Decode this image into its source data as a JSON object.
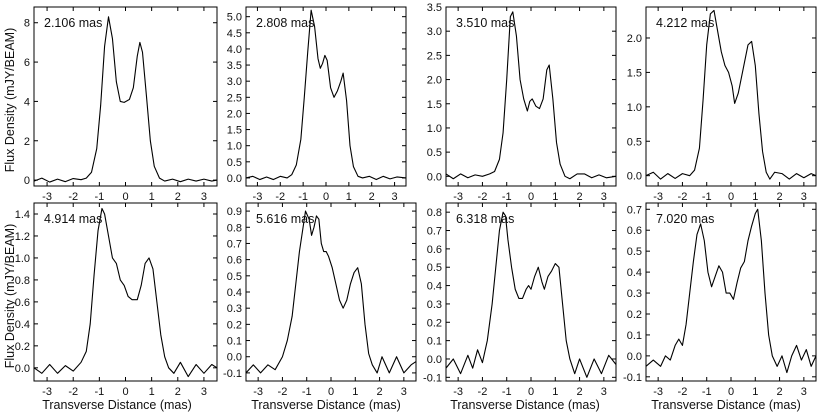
{
  "figure": {
    "ylabel": "Flux Density (mJY/BEAM)",
    "xlabel": "Transverse Distance (mas)"
  },
  "chart_data": [
    {
      "type": "line",
      "label": "2.106 mas",
      "xlim": [
        -3.5,
        3.5
      ],
      "ylim": [
        -0.3,
        8.8
      ],
      "xticks": [
        -3,
        -2,
        -1,
        0,
        1,
        2,
        3
      ],
      "yticks": [
        0,
        2,
        4,
        6,
        8
      ],
      "points": [
        [
          -3.5,
          -0.05
        ],
        [
          -3.2,
          0.1
        ],
        [
          -2.9,
          -0.1
        ],
        [
          -2.6,
          0.05
        ],
        [
          -2.3,
          -0.08
        ],
        [
          -2.0,
          0.08
        ],
        [
          -1.7,
          0.02
        ],
        [
          -1.5,
          0.1
        ],
        [
          -1.3,
          0.4
        ],
        [
          -1.1,
          1.6
        ],
        [
          -0.95,
          3.8
        ],
        [
          -0.8,
          6.8
        ],
        [
          -0.65,
          8.3
        ],
        [
          -0.5,
          7.2
        ],
        [
          -0.35,
          5.0
        ],
        [
          -0.2,
          4.0
        ],
        [
          -0.05,
          3.95
        ],
        [
          0.15,
          4.1
        ],
        [
          0.3,
          4.7
        ],
        [
          0.45,
          6.3
        ],
        [
          0.55,
          7.0
        ],
        [
          0.65,
          6.5
        ],
        [
          0.8,
          4.3
        ],
        [
          0.95,
          2.0
        ],
        [
          1.1,
          0.7
        ],
        [
          1.3,
          0.1
        ],
        [
          1.5,
          -0.05
        ],
        [
          1.8,
          0.05
        ],
        [
          2.1,
          -0.08
        ],
        [
          2.4,
          0.05
        ],
        [
          2.7,
          -0.05
        ],
        [
          3.0,
          0.05
        ],
        [
          3.3,
          -0.05
        ],
        [
          3.5,
          0.0
        ]
      ]
    },
    {
      "type": "line",
      "label": "2.808 mas",
      "xlim": [
        -3.5,
        3.5
      ],
      "ylim": [
        -0.25,
        5.3
      ],
      "xticks": [
        -3,
        -2,
        -1,
        0,
        1,
        2,
        3
      ],
      "yticks": [
        0.0,
        0.5,
        1.0,
        1.5,
        2.0,
        2.5,
        3.0,
        3.5,
        4.0,
        4.5,
        5.0
      ],
      "points": [
        [
          -3.5,
          0.0
        ],
        [
          -3.2,
          0.05
        ],
        [
          -2.9,
          -0.05
        ],
        [
          -2.6,
          0.03
        ],
        [
          -2.3,
          -0.05
        ],
        [
          -2.0,
          0.05
        ],
        [
          -1.7,
          0.0
        ],
        [
          -1.5,
          0.1
        ],
        [
          -1.3,
          0.4
        ],
        [
          -1.1,
          1.2
        ],
        [
          -0.95,
          2.5
        ],
        [
          -0.8,
          3.9
        ],
        [
          -0.65,
          5.2
        ],
        [
          -0.5,
          4.7
        ],
        [
          -0.35,
          3.7
        ],
        [
          -0.25,
          3.4
        ],
        [
          -0.15,
          3.55
        ],
        [
          -0.05,
          3.8
        ],
        [
          0.05,
          3.65
        ],
        [
          0.2,
          2.8
        ],
        [
          0.35,
          2.5
        ],
        [
          0.5,
          2.7
        ],
        [
          0.65,
          3.0
        ],
        [
          0.75,
          3.25
        ],
        [
          0.9,
          2.4
        ],
        [
          1.05,
          1.0
        ],
        [
          1.2,
          0.35
        ],
        [
          1.4,
          0.05
        ],
        [
          1.6,
          0.0
        ],
        [
          1.9,
          0.05
        ],
        [
          2.2,
          -0.05
        ],
        [
          2.5,
          0.05
        ],
        [
          2.8,
          -0.03
        ],
        [
          3.1,
          0.03
        ],
        [
          3.5,
          0.0
        ]
      ]
    },
    {
      "type": "line",
      "label": "3.510 mas",
      "xlim": [
        -3.5,
        3.5
      ],
      "ylim": [
        -0.2,
        3.5
      ],
      "xticks": [
        -3,
        -2,
        -1,
        0,
        1,
        2,
        3
      ],
      "yticks": [
        0.0,
        0.5,
        1.0,
        1.5,
        2.0,
        2.5,
        3.0,
        3.5
      ],
      "points": [
        [
          -3.5,
          0.05
        ],
        [
          -3.2,
          -0.05
        ],
        [
          -2.9,
          0.05
        ],
        [
          -2.6,
          -0.03
        ],
        [
          -2.3,
          0.03
        ],
        [
          -2.0,
          0.0
        ],
        [
          -1.7,
          0.05
        ],
        [
          -1.5,
          0.1
        ],
        [
          -1.3,
          0.35
        ],
        [
          -1.15,
          0.9
        ],
        [
          -1.0,
          2.0
        ],
        [
          -0.85,
          3.3
        ],
        [
          -0.75,
          3.4
        ],
        [
          -0.6,
          2.9
        ],
        [
          -0.45,
          2.0
        ],
        [
          -0.3,
          1.6
        ],
        [
          -0.15,
          1.35
        ],
        [
          -0.05,
          1.55
        ],
        [
          0.05,
          1.6
        ],
        [
          0.2,
          1.45
        ],
        [
          0.35,
          1.4
        ],
        [
          0.5,
          1.6
        ],
        [
          0.65,
          2.2
        ],
        [
          0.75,
          2.3
        ],
        [
          0.9,
          1.6
        ],
        [
          1.05,
          0.7
        ],
        [
          1.2,
          0.25
        ],
        [
          1.4,
          0.0
        ],
        [
          1.6,
          -0.05
        ],
        [
          1.9,
          0.05
        ],
        [
          2.2,
          0.05
        ],
        [
          2.5,
          -0.03
        ],
        [
          2.8,
          0.03
        ],
        [
          3.1,
          -0.03
        ],
        [
          3.5,
          0.0
        ]
      ]
    },
    {
      "type": "line",
      "label": "4.212 mas",
      "xlim": [
        -3.5,
        3.5
      ],
      "ylim": [
        -0.15,
        2.45
      ],
      "xticks": [
        -3,
        -2,
        -1,
        0,
        1,
        2,
        3
      ],
      "yticks": [
        0.0,
        0.5,
        1.0,
        1.5,
        2.0
      ],
      "points": [
        [
          -3.5,
          0.0
        ],
        [
          -3.2,
          0.05
        ],
        [
          -2.9,
          -0.05
        ],
        [
          -2.6,
          0.03
        ],
        [
          -2.3,
          -0.04
        ],
        [
          -2.0,
          0.03
        ],
        [
          -1.7,
          0.0
        ],
        [
          -1.5,
          0.08
        ],
        [
          -1.3,
          0.4
        ],
        [
          -1.15,
          1.1
        ],
        [
          -1.0,
          1.9
        ],
        [
          -0.85,
          2.35
        ],
        [
          -0.7,
          2.4
        ],
        [
          -0.55,
          2.1
        ],
        [
          -0.4,
          1.8
        ],
        [
          -0.25,
          1.6
        ],
        [
          -0.1,
          1.5
        ],
        [
          0.05,
          1.3
        ],
        [
          0.15,
          1.05
        ],
        [
          0.3,
          1.2
        ],
        [
          0.5,
          1.55
        ],
        [
          0.7,
          1.9
        ],
        [
          0.85,
          1.95
        ],
        [
          1.0,
          1.6
        ],
        [
          1.15,
          0.9
        ],
        [
          1.3,
          0.35
        ],
        [
          1.45,
          0.05
        ],
        [
          1.6,
          -0.05
        ],
        [
          1.8,
          0.05
        ],
        [
          2.1,
          0.03
        ],
        [
          2.4,
          -0.05
        ],
        [
          2.7,
          0.03
        ],
        [
          3.0,
          -0.03
        ],
        [
          3.3,
          0.03
        ],
        [
          3.5,
          0.0
        ]
      ]
    },
    {
      "type": "line",
      "label": "4.914 mas",
      "xlim": [
        -3.5,
        3.5
      ],
      "ylim": [
        -0.12,
        1.5
      ],
      "xticks": [
        -3,
        -2,
        -1,
        0,
        1,
        2,
        3
      ],
      "yticks": [
        0.0,
        0.2,
        0.4,
        0.6,
        0.8,
        1.0,
        1.2,
        1.4
      ],
      "points": [
        [
          -3.5,
          0.0
        ],
        [
          -3.2,
          -0.05
        ],
        [
          -2.9,
          0.03
        ],
        [
          -2.6,
          -0.05
        ],
        [
          -2.3,
          0.02
        ],
        [
          -2.0,
          -0.03
        ],
        [
          -1.7,
          0.05
        ],
        [
          -1.5,
          0.15
        ],
        [
          -1.35,
          0.4
        ],
        [
          -1.2,
          0.85
        ],
        [
          -1.05,
          1.25
        ],
        [
          -0.9,
          1.45
        ],
        [
          -0.8,
          1.4
        ],
        [
          -0.65,
          1.2
        ],
        [
          -0.5,
          1.0
        ],
        [
          -0.35,
          0.95
        ],
        [
          -0.2,
          0.8
        ],
        [
          -0.05,
          0.75
        ],
        [
          0.1,
          0.65
        ],
        [
          0.25,
          0.62
        ],
        [
          0.45,
          0.62
        ],
        [
          0.6,
          0.75
        ],
        [
          0.75,
          0.95
        ],
        [
          0.9,
          1.0
        ],
        [
          1.05,
          0.9
        ],
        [
          1.2,
          0.6
        ],
        [
          1.35,
          0.3
        ],
        [
          1.5,
          0.1
        ],
        [
          1.65,
          0.0
        ],
        [
          1.85,
          -0.05
        ],
        [
          2.1,
          0.05
        ],
        [
          2.4,
          -0.08
        ],
        [
          2.7,
          0.03
        ],
        [
          3.0,
          -0.05
        ],
        [
          3.3,
          0.03
        ],
        [
          3.5,
          0.0
        ]
      ]
    },
    {
      "type": "line",
      "label": "5.616 mas",
      "xlim": [
        -3.5,
        3.5
      ],
      "ylim": [
        -0.15,
        0.95
      ],
      "xticks": [
        -3,
        -2,
        -1,
        0,
        1,
        2,
        3
      ],
      "yticks": [
        -0.1,
        0.0,
        0.1,
        0.2,
        0.3,
        0.4,
        0.5,
        0.6,
        0.7,
        0.8,
        0.9
      ],
      "points": [
        [
          -3.5,
          -0.1
        ],
        [
          -3.2,
          -0.05
        ],
        [
          -2.9,
          -0.1
        ],
        [
          -2.6,
          -0.05
        ],
        [
          -2.3,
          -0.08
        ],
        [
          -2.0,
          0.0
        ],
        [
          -1.8,
          0.1
        ],
        [
          -1.6,
          0.25
        ],
        [
          -1.45,
          0.45
        ],
        [
          -1.3,
          0.65
        ],
        [
          -1.15,
          0.8
        ],
        [
          -1.05,
          0.9
        ],
        [
          -0.9,
          0.85
        ],
        [
          -0.8,
          0.75
        ],
        [
          -0.7,
          0.8
        ],
        [
          -0.6,
          0.87
        ],
        [
          -0.5,
          0.85
        ],
        [
          -0.4,
          0.7
        ],
        [
          -0.3,
          0.65
        ],
        [
          -0.2,
          0.65
        ],
        [
          -0.1,
          0.62
        ],
        [
          0.05,
          0.55
        ],
        [
          0.2,
          0.45
        ],
        [
          0.35,
          0.35
        ],
        [
          0.5,
          0.3
        ],
        [
          0.65,
          0.35
        ],
        [
          0.8,
          0.45
        ],
        [
          0.95,
          0.52
        ],
        [
          1.1,
          0.55
        ],
        [
          1.25,
          0.45
        ],
        [
          1.4,
          0.2
        ],
        [
          1.55,
          0.02
        ],
        [
          1.7,
          -0.05
        ],
        [
          1.9,
          -0.1
        ],
        [
          2.1,
          0.0
        ],
        [
          2.4,
          -0.1
        ],
        [
          2.7,
          0.0
        ],
        [
          3.0,
          -0.1
        ],
        [
          3.3,
          -0.05
        ],
        [
          3.5,
          -0.03
        ]
      ]
    },
    {
      "type": "line",
      "label": "6.318 mas",
      "xlim": [
        -3.5,
        3.5
      ],
      "ylim": [
        -0.12,
        0.85
      ],
      "xticks": [
        -3,
        -2,
        -1,
        0,
        1,
        2,
        3
      ],
      "yticks": [
        -0.1,
        0.0,
        0.1,
        0.2,
        0.3,
        0.4,
        0.5,
        0.6,
        0.7,
        0.8
      ],
      "points": [
        [
          -3.5,
          -0.05
        ],
        [
          -3.2,
          0.0
        ],
        [
          -2.9,
          -0.08
        ],
        [
          -2.6,
          0.02
        ],
        [
          -2.4,
          -0.05
        ],
        [
          -2.2,
          0.05
        ],
        [
          -2.0,
          -0.02
        ],
        [
          -1.8,
          0.1
        ],
        [
          -1.6,
          0.3
        ],
        [
          -1.45,
          0.5
        ],
        [
          -1.3,
          0.7
        ],
        [
          -1.15,
          0.8
        ],
        [
          -1.05,
          0.78
        ],
        [
          -0.95,
          0.65
        ],
        [
          -0.8,
          0.5
        ],
        [
          -0.65,
          0.38
        ],
        [
          -0.5,
          0.33
        ],
        [
          -0.35,
          0.33
        ],
        [
          -0.2,
          0.38
        ],
        [
          -0.1,
          0.4
        ],
        [
          0.0,
          0.38
        ],
        [
          0.15,
          0.45
        ],
        [
          0.3,
          0.5
        ],
        [
          0.45,
          0.42
        ],
        [
          0.55,
          0.38
        ],
        [
          0.7,
          0.45
        ],
        [
          0.85,
          0.48
        ],
        [
          1.0,
          0.52
        ],
        [
          1.15,
          0.5
        ],
        [
          1.3,
          0.3
        ],
        [
          1.45,
          0.1
        ],
        [
          1.6,
          0.0
        ],
        [
          1.8,
          -0.08
        ],
        [
          2.0,
          0.0
        ],
        [
          2.3,
          -0.1
        ],
        [
          2.6,
          0.0
        ],
        [
          2.9,
          -0.08
        ],
        [
          3.2,
          0.02
        ],
        [
          3.5,
          -0.03
        ]
      ]
    },
    {
      "type": "line",
      "label": "7.020 mas",
      "xlim": [
        -3.5,
        3.5
      ],
      "ylim": [
        -0.12,
        0.73
      ],
      "xticks": [
        -3,
        -2,
        -1,
        0,
        1,
        2,
        3
      ],
      "yticks": [
        -0.1,
        0.0,
        0.1,
        0.2,
        0.3,
        0.4,
        0.5,
        0.6,
        0.7
      ],
      "points": [
        [
          -3.5,
          -0.05
        ],
        [
          -3.2,
          -0.02
        ],
        [
          -2.9,
          -0.05
        ],
        [
          -2.7,
          0.0
        ],
        [
          -2.5,
          -0.02
        ],
        [
          -2.3,
          0.05
        ],
        [
          -2.15,
          0.08
        ],
        [
          -2.0,
          0.05
        ],
        [
          -1.85,
          0.15
        ],
        [
          -1.7,
          0.3
        ],
        [
          -1.55,
          0.45
        ],
        [
          -1.4,
          0.58
        ],
        [
          -1.25,
          0.63
        ],
        [
          -1.1,
          0.55
        ],
        [
          -0.95,
          0.4
        ],
        [
          -0.8,
          0.33
        ],
        [
          -0.65,
          0.38
        ],
        [
          -0.5,
          0.43
        ],
        [
          -0.35,
          0.4
        ],
        [
          -0.2,
          0.3
        ],
        [
          -0.05,
          0.3
        ],
        [
          0.1,
          0.27
        ],
        [
          0.25,
          0.35
        ],
        [
          0.4,
          0.42
        ],
        [
          0.55,
          0.45
        ],
        [
          0.7,
          0.55
        ],
        [
          0.85,
          0.62
        ],
        [
          1.0,
          0.68
        ],
        [
          1.1,
          0.7
        ],
        [
          1.25,
          0.55
        ],
        [
          1.4,
          0.3
        ],
        [
          1.55,
          0.1
        ],
        [
          1.7,
          0.0
        ],
        [
          1.9,
          -0.05
        ],
        [
          2.1,
          0.0
        ],
        [
          2.3,
          -0.08
        ],
        [
          2.5,
          0.0
        ],
        [
          2.7,
          0.05
        ],
        [
          2.9,
          -0.02
        ],
        [
          3.1,
          0.03
        ],
        [
          3.3,
          -0.05
        ],
        [
          3.5,
          0.0
        ]
      ]
    }
  ]
}
